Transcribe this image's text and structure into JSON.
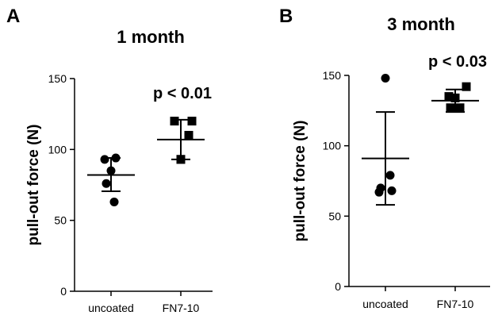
{
  "chart_data": [
    {
      "type": "scatter",
      "panel": "A",
      "title": "1 month",
      "ylabel": "pull-out force (N)",
      "xlabel": "",
      "ylim": [
        0,
        150
      ],
      "yticks": [
        0,
        50,
        100,
        150
      ],
      "categories": [
        "uncoated",
        "FN7-10"
      ],
      "series": [
        {
          "category": "uncoated",
          "marker": "circle",
          "values": [
            93,
            94,
            85,
            76,
            63
          ],
          "mean": 82,
          "sd_low": 70.5,
          "sd_high": 94
        },
        {
          "category": "FN7-10",
          "marker": "square",
          "values": [
            120,
            120,
            110,
            93,
            93
          ],
          "mean": 107,
          "sd_low": 93,
          "sd_high": 121
        }
      ],
      "annotation": "p < 0.01"
    },
    {
      "type": "scatter",
      "panel": "B",
      "title": "3 month",
      "ylabel": "pull-out force (N)",
      "xlabel": "",
      "ylim": [
        0,
        150
      ],
      "yticks": [
        0,
        50,
        100,
        150
      ],
      "categories": [
        "uncoated",
        "FN7-10"
      ],
      "series": [
        {
          "category": "uncoated",
          "marker": "circle",
          "values": [
            148,
            79,
            70,
            68,
            67
          ],
          "mean": 91,
          "sd_low": 58,
          "sd_high": 124
        },
        {
          "category": "FN7-10",
          "marker": "square",
          "values": [
            142,
            135,
            134,
            127,
            127
          ],
          "mean": 132,
          "sd_low": 124,
          "sd_high": 140
        }
      ],
      "annotation": "p < 0.03"
    }
  ]
}
